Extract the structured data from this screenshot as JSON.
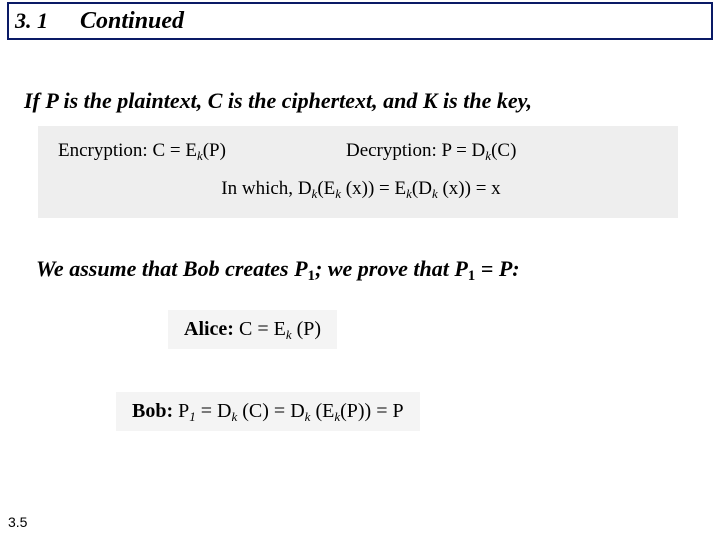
{
  "header": {
    "number": "3. 1",
    "title": "Continued"
  },
  "intro": "If P is the plaintext, C is the ciphertext, and K is the key,",
  "formulaBox": {
    "bg": "#eeeeee",
    "enc_label": "Encryption:",
    "enc_expr": "C = E",
    "enc_sub": "k",
    "enc_tail": "(P)",
    "dec_label": "Decryption:",
    "dec_expr": "P = D",
    "dec_sub": "k",
    "dec_tail": "(C)",
    "inwhich_label": "In which,",
    "inwhich_lhs_a": "D",
    "inwhich_lhs_b": "(E",
    "inwhich_lhs_c": " (x)) = E",
    "inwhich_lhs_d": "(D",
    "inwhich_lhs_e": " (x)) = x"
  },
  "assume": {
    "a": "We assume that Bob creates P",
    "s1": "1",
    "b": "; we prove that P",
    "s2": "1",
    "c": " = P:"
  },
  "alice": {
    "label": "Alice:",
    "a": " C = E",
    "sub": "k",
    "b": " (P)"
  },
  "bob": {
    "label": "Bob:",
    "a": " P",
    "s1": "1",
    "b": " = D",
    "sub1": "k",
    "c": " (C) = D",
    "sub2": "k",
    "d": " (E",
    "sub3": "k",
    "e": "(P)) = P"
  },
  "footer": "3.5",
  "colors": {
    "headerBorder": "#0a1a66",
    "text": "#000000",
    "bg": "#ffffff",
    "boxBg": "#eeeeee",
    "innerBoxBg": "#f4f4f4"
  }
}
